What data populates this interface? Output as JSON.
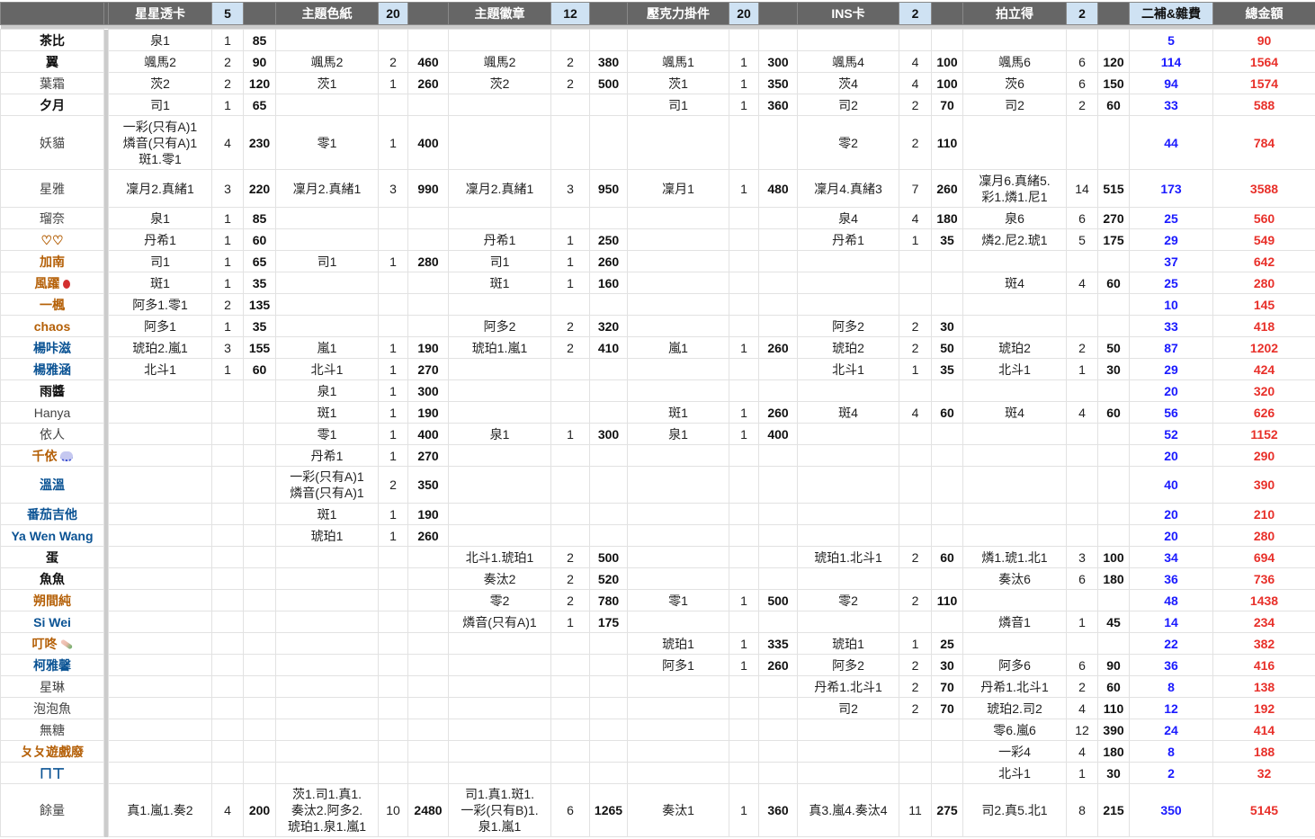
{
  "header": {
    "groups": [
      {
        "label": "星星透卡",
        "qty": "5"
      },
      {
        "label": "主題色紙",
        "qty": "20"
      },
      {
        "label": "主題徽章",
        "qty": "12"
      },
      {
        "label": "壓克力掛件",
        "qty": "20"
      },
      {
        "label": "INS卡",
        "qty": "2"
      },
      {
        "label": "拍立得",
        "qty": "2"
      }
    ],
    "fee": "二補&雜費",
    "total": "總金額"
  },
  "colors": {
    "header_bg": "#666666",
    "qty_header_bg": "#cfe2f3",
    "fee": "#1a1aff",
    "total": "#e8302a",
    "brown": "#b45f06",
    "blue": "#0b5394"
  },
  "rows": [
    {
      "name": "茶比",
      "color": "black",
      "cells": [
        [
          "泉1",
          "1",
          "85"
        ],
        [
          "",
          "",
          ""
        ],
        [
          "",
          "",
          ""
        ],
        [
          "",
          "",
          ""
        ],
        [
          "",
          "",
          ""
        ],
        [
          "",
          "",
          ""
        ]
      ],
      "fee": "5",
      "total": "90"
    },
    {
      "name": "翼",
      "color": "black",
      "cells": [
        [
          "颯馬2",
          "2",
          "90"
        ],
        [
          "颯馬2",
          "2",
          "460"
        ],
        [
          "颯馬2",
          "2",
          "380"
        ],
        [
          "颯馬1",
          "1",
          "300"
        ],
        [
          "颯馬4",
          "4",
          "100"
        ],
        [
          "颯馬6",
          "6",
          "120"
        ]
      ],
      "fee": "114",
      "total": "1564"
    },
    {
      "name": "葉霜",
      "color": "gray",
      "cells": [
        [
          "茨2",
          "2",
          "120"
        ],
        [
          "茨1",
          "1",
          "260"
        ],
        [
          "茨2",
          "2",
          "500"
        ],
        [
          "茨1",
          "1",
          "350"
        ],
        [
          "茨4",
          "4",
          "100"
        ],
        [
          "茨6",
          "6",
          "150"
        ]
      ],
      "fee": "94",
      "total": "1574"
    },
    {
      "name": "夕月",
      "color": "black",
      "cells": [
        [
          "司1",
          "1",
          "65"
        ],
        [
          "",
          "",
          ""
        ],
        [
          "",
          "",
          ""
        ],
        [
          "司1",
          "1",
          "360"
        ],
        [
          "司2",
          "2",
          "70"
        ],
        [
          "司2",
          "2",
          "60"
        ]
      ],
      "fee": "33",
      "total": "588"
    },
    {
      "name": "妖貓",
      "color": "gray",
      "h": 59,
      "cells": [
        [
          "一彩(只有A)1\n燐音(只有A)1\n斑1.零1",
          "4",
          "230"
        ],
        [
          "零1",
          "1",
          "400"
        ],
        [
          "",
          "",
          ""
        ],
        [
          "",
          "",
          ""
        ],
        [
          "零2",
          "2",
          "110"
        ],
        [
          "",
          "",
          ""
        ]
      ],
      "fee": "44",
      "total": "784"
    },
    {
      "name": "星雅",
      "color": "gray",
      "h": 41,
      "cells": [
        [
          "凜月2.真緒1",
          "3",
          "220"
        ],
        [
          "凜月2.真緒1",
          "3",
          "990"
        ],
        [
          "凜月2.真緒1",
          "3",
          "950"
        ],
        [
          "凜月1",
          "1",
          "480"
        ],
        [
          "凜月4.真緒3",
          "7",
          "260"
        ],
        [
          "凜月6.真緒5.\n彩1.燐1.尼1",
          "14",
          "515"
        ]
      ],
      "fee": "173",
      "total": "3588"
    },
    {
      "name": "瑠奈",
      "color": "gray",
      "cells": [
        [
          "泉1",
          "1",
          "85"
        ],
        [
          "",
          "",
          ""
        ],
        [
          "",
          "",
          ""
        ],
        [
          "",
          "",
          ""
        ],
        [
          "泉4",
          "4",
          "180"
        ],
        [
          "泉6",
          "6",
          "270"
        ]
      ],
      "fee": "25",
      "total": "560"
    },
    {
      "name": "♡♡",
      "color": "brown",
      "cells": [
        [
          "丹希1",
          "1",
          "60"
        ],
        [
          "",
          "",
          ""
        ],
        [
          "丹希1",
          "1",
          "250"
        ],
        [
          "",
          "",
          ""
        ],
        [
          "丹希1",
          "1",
          "35"
        ],
        [
          "燐2.尼2.琥1",
          "5",
          "175"
        ]
      ],
      "fee": "29",
      "total": "549"
    },
    {
      "name": "加南",
      "color": "brown",
      "cells": [
        [
          "司1",
          "1",
          "65"
        ],
        [
          "司1",
          "1",
          "280"
        ],
        [
          "司1",
          "1",
          "260"
        ],
        [
          "",
          "",
          ""
        ],
        [
          "",
          "",
          ""
        ],
        [
          "",
          "",
          ""
        ]
      ],
      "fee": "37",
      "total": "642"
    },
    {
      "name": "風躍",
      "color": "brown",
      "icon": "balloon",
      "cells": [
        [
          "斑1",
          "1",
          "35"
        ],
        [
          "",
          "",
          ""
        ],
        [
          "斑1",
          "1",
          "160"
        ],
        [
          "",
          "",
          ""
        ],
        [
          "",
          "",
          ""
        ],
        [
          "斑4",
          "4",
          "60"
        ]
      ],
      "fee": "25",
      "total": "280"
    },
    {
      "name": "一楓",
      "color": "brown",
      "cells": [
        [
          "阿多1.零1",
          "2",
          "135"
        ],
        [
          "",
          "",
          ""
        ],
        [
          "",
          "",
          ""
        ],
        [
          "",
          "",
          ""
        ],
        [
          "",
          "",
          ""
        ],
        [
          "",
          "",
          ""
        ]
      ],
      "fee": "10",
      "total": "145"
    },
    {
      "name": "chaos",
      "color": "brown",
      "cells": [
        [
          "阿多1",
          "1",
          "35"
        ],
        [
          "",
          "",
          ""
        ],
        [
          "阿多2",
          "2",
          "320"
        ],
        [
          "",
          "",
          ""
        ],
        [
          "阿多2",
          "2",
          "30"
        ],
        [
          "",
          "",
          ""
        ]
      ],
      "fee": "33",
      "total": "418"
    },
    {
      "name": "楊咔滋",
      "color": "blue",
      "cells": [
        [
          "琥珀2.嵐1",
          "3",
          "155"
        ],
        [
          "嵐1",
          "1",
          "190"
        ],
        [
          "琥珀1.嵐1",
          "2",
          "410"
        ],
        [
          "嵐1",
          "1",
          "260"
        ],
        [
          "琥珀2",
          "2",
          "50"
        ],
        [
          "琥珀2",
          "2",
          "50"
        ]
      ],
      "fee": "87",
      "total": "1202"
    },
    {
      "name": "楊雅涵",
      "color": "blue",
      "cells": [
        [
          "北斗1",
          "1",
          "60"
        ],
        [
          "北斗1",
          "1",
          "270"
        ],
        [
          "",
          "",
          ""
        ],
        [
          "",
          "",
          ""
        ],
        [
          "北斗1",
          "1",
          "35"
        ],
        [
          "北斗1",
          "1",
          "30"
        ]
      ],
      "fee": "29",
      "total": "424"
    },
    {
      "name": "雨醬",
      "color": "black",
      "cells": [
        [
          "",
          "",
          ""
        ],
        [
          "泉1",
          "1",
          "300"
        ],
        [
          "",
          "",
          ""
        ],
        [
          "",
          "",
          ""
        ],
        [
          "",
          "",
          ""
        ],
        [
          "",
          "",
          ""
        ]
      ],
      "fee": "20",
      "total": "320"
    },
    {
      "name": "Hanya",
      "color": "gray",
      "cells": [
        [
          "",
          "",
          ""
        ],
        [
          "斑1",
          "1",
          "190"
        ],
        [
          "",
          "",
          ""
        ],
        [
          "斑1",
          "1",
          "260"
        ],
        [
          "斑4",
          "4",
          "60"
        ],
        [
          "斑4",
          "4",
          "60"
        ]
      ],
      "fee": "56",
      "total": "626"
    },
    {
      "name": "依人",
      "color": "gray",
      "cells": [
        [
          "",
          "",
          ""
        ],
        [
          "零1",
          "1",
          "400"
        ],
        [
          "泉1",
          "1",
          "300"
        ],
        [
          "泉1",
          "1",
          "400"
        ],
        [
          "",
          "",
          ""
        ],
        [
          "",
          "",
          ""
        ]
      ],
      "fee": "52",
      "total": "1152"
    },
    {
      "name": "千依",
      "color": "brown",
      "icon": "cloud",
      "cells": [
        [
          "",
          "",
          ""
        ],
        [
          "丹希1",
          "1",
          "270"
        ],
        [
          "",
          "",
          ""
        ],
        [
          "",
          "",
          ""
        ],
        [
          "",
          "",
          ""
        ],
        [
          "",
          "",
          ""
        ]
      ],
      "fee": "20",
      "total": "290"
    },
    {
      "name": "溫溫",
      "color": "blue",
      "h": 40,
      "cells": [
        [
          "",
          "",
          ""
        ],
        [
          "一彩(只有A)1\n燐音(只有A)1",
          "2",
          "350"
        ],
        [
          "",
          "",
          ""
        ],
        [
          "",
          "",
          ""
        ],
        [
          "",
          "",
          ""
        ],
        [
          "",
          "",
          ""
        ]
      ],
      "fee": "40",
      "total": "390"
    },
    {
      "name": "番茄吉他",
      "color": "blue",
      "cells": [
        [
          "",
          "",
          ""
        ],
        [
          "斑1",
          "1",
          "190"
        ],
        [
          "",
          "",
          ""
        ],
        [
          "",
          "",
          ""
        ],
        [
          "",
          "",
          ""
        ],
        [
          "",
          "",
          ""
        ]
      ],
      "fee": "20",
      "total": "210"
    },
    {
      "name": "Ya Wen Wang",
      "color": "blue",
      "cells": [
        [
          "",
          "",
          ""
        ],
        [
          "琥珀1",
          "1",
          "260"
        ],
        [
          "",
          "",
          ""
        ],
        [
          "",
          "",
          ""
        ],
        [
          "",
          "",
          ""
        ],
        [
          "",
          "",
          ""
        ]
      ],
      "fee": "20",
      "total": "280"
    },
    {
      "name": "蛋",
      "color": "black",
      "cells": [
        [
          "",
          "",
          ""
        ],
        [
          "",
          "",
          ""
        ],
        [
          "北斗1.琥珀1",
          "2",
          "500"
        ],
        [
          "",
          "",
          ""
        ],
        [
          "琥珀1.北斗1",
          "2",
          "60"
        ],
        [
          "燐1.琥1.北1",
          "3",
          "100"
        ]
      ],
      "fee": "34",
      "total": "694"
    },
    {
      "name": "魚魚",
      "color": "black",
      "cells": [
        [
          "",
          "",
          ""
        ],
        [
          "",
          "",
          ""
        ],
        [
          "奏汰2",
          "2",
          "520"
        ],
        [
          "",
          "",
          ""
        ],
        [
          "",
          "",
          ""
        ],
        [
          "奏汰6",
          "6",
          "180"
        ]
      ],
      "fee": "36",
      "total": "736"
    },
    {
      "name": "朔間純",
      "color": "brown",
      "cells": [
        [
          "",
          "",
          ""
        ],
        [
          "",
          "",
          ""
        ],
        [
          "零2",
          "2",
          "780"
        ],
        [
          "零1",
          "1",
          "500"
        ],
        [
          "零2",
          "2",
          "110"
        ],
        [
          "",
          "",
          ""
        ]
      ],
      "fee": "48",
      "total": "1438"
    },
    {
      "name": "Si Wei",
      "color": "blue",
      "cells": [
        [
          "",
          "",
          ""
        ],
        [
          "",
          "",
          ""
        ],
        [
          "燐音(只有A)1",
          "1",
          "175"
        ],
        [
          "",
          "",
          ""
        ],
        [
          "",
          "",
          ""
        ],
        [
          "燐音1",
          "1",
          "45"
        ]
      ],
      "fee": "14",
      "total": "234"
    },
    {
      "name": "叮咚",
      "color": "brown",
      "icon": "skewer",
      "cells": [
        [
          "",
          "",
          ""
        ],
        [
          "",
          "",
          ""
        ],
        [
          "",
          "",
          ""
        ],
        [
          "琥珀1",
          "1",
          "335"
        ],
        [
          "琥珀1",
          "1",
          "25"
        ],
        [
          "",
          "",
          ""
        ]
      ],
      "fee": "22",
      "total": "382"
    },
    {
      "name": "柯雅馨",
      "color": "blue",
      "cells": [
        [
          "",
          "",
          ""
        ],
        [
          "",
          "",
          ""
        ],
        [
          "",
          "",
          ""
        ],
        [
          "阿多1",
          "1",
          "260"
        ],
        [
          "阿多2",
          "2",
          "30"
        ],
        [
          "阿多6",
          "6",
          "90"
        ]
      ],
      "fee": "36",
      "total": "416"
    },
    {
      "name": "星琳",
      "color": "gray",
      "cells": [
        [
          "",
          "",
          ""
        ],
        [
          "",
          "",
          ""
        ],
        [
          "",
          "",
          ""
        ],
        [
          "",
          "",
          ""
        ],
        [
          "丹希1.北斗1",
          "2",
          "70"
        ],
        [
          "丹希1.北斗1",
          "2",
          "60"
        ]
      ],
      "fee": "8",
      "total": "138"
    },
    {
      "name": "泡泡魚",
      "color": "gray",
      "cells": [
        [
          "",
          "",
          ""
        ],
        [
          "",
          "",
          ""
        ],
        [
          "",
          "",
          ""
        ],
        [
          "",
          "",
          ""
        ],
        [
          "司2",
          "2",
          "70"
        ],
        [
          "琥珀2.司2",
          "4",
          "110"
        ]
      ],
      "fee": "12",
      "total": "192"
    },
    {
      "name": "無糖",
      "color": "gray",
      "cells": [
        [
          "",
          "",
          ""
        ],
        [
          "",
          "",
          ""
        ],
        [
          "",
          "",
          ""
        ],
        [
          "",
          "",
          ""
        ],
        [
          "",
          "",
          ""
        ],
        [
          "零6.嵐6",
          "12",
          "390"
        ]
      ],
      "fee": "24",
      "total": "414"
    },
    {
      "name": "ㄆㄆ遊戲廢",
      "color": "brown",
      "cells": [
        [
          "",
          "",
          ""
        ],
        [
          "",
          "",
          ""
        ],
        [
          "",
          "",
          ""
        ],
        [
          "",
          "",
          ""
        ],
        [
          "",
          "",
          ""
        ],
        [
          "一彩4",
          "4",
          "180"
        ]
      ],
      "fee": "8",
      "total": "188"
    },
    {
      "name": "ㄇㄒ",
      "color": "blue",
      "cells": [
        [
          "",
          "",
          ""
        ],
        [
          "",
          "",
          ""
        ],
        [
          "",
          "",
          ""
        ],
        [
          "",
          "",
          ""
        ],
        [
          "",
          "",
          ""
        ],
        [
          "北斗1",
          "1",
          "30"
        ]
      ],
      "fee": "2",
      "total": "32"
    },
    {
      "name": "餘量",
      "color": "gray",
      "h": 58,
      "cells": [
        [
          "真1.嵐1.奏2",
          "4",
          "200"
        ],
        [
          "茨1.司1.真1.\n奏汰2.阿多2.\n琥珀1.泉1.嵐1",
          "10",
          "2480"
        ],
        [
          "司1.真1.斑1.\n一彩(只有B)1.\n泉1.嵐1",
          "6",
          "1265"
        ],
        [
          "奏汰1",
          "1",
          "360"
        ],
        [
          "真3.嵐4.奏汰4",
          "11",
          "275"
        ],
        [
          "司2.真5.北1",
          "8",
          "215"
        ]
      ],
      "fee": "350",
      "total": "5145"
    }
  ]
}
